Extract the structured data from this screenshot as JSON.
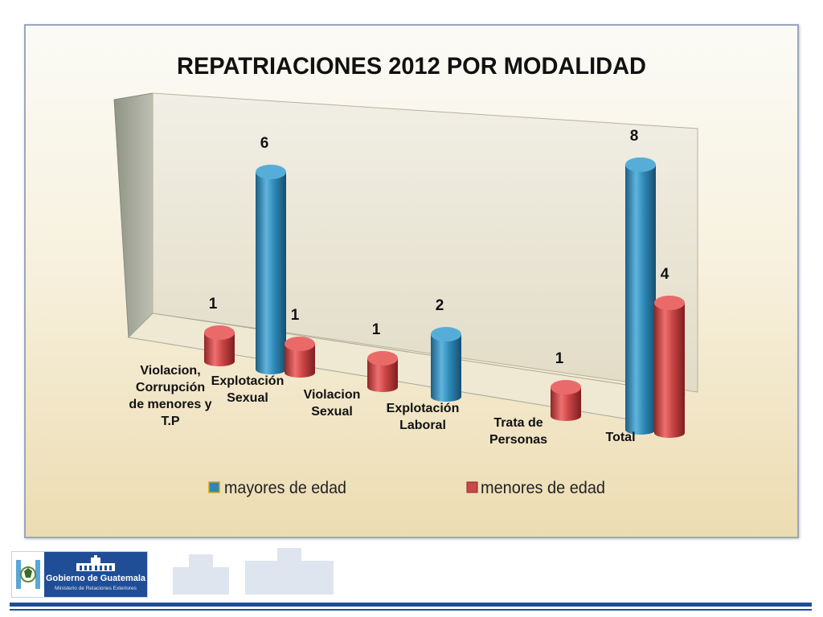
{
  "chart_data": {
    "type": "bar",
    "title": "REPATRIACIONES 2012 POR MODALIDAD",
    "categories": [
      [
        "Violacion,",
        "Corrupción",
        "de menores y",
        "T.P"
      ],
      [
        "Explotación",
        "Sexual"
      ],
      [
        "Violacion",
        "Sexual"
      ],
      [
        "Explotación",
        "Laboral"
      ],
      [
        "Trata de",
        "Personas"
      ],
      [
        "Total"
      ]
    ],
    "series": [
      {
        "name": "mayores de edad",
        "color": "#2e86b4",
        "values": [
          null,
          6,
          null,
          2,
          null,
          8
        ]
      },
      {
        "name": "menores de edad",
        "color": "#c94848",
        "values": [
          1,
          1,
          1,
          null,
          1,
          4
        ]
      }
    ],
    "ylim": [
      0,
      8
    ],
    "chart_style": "3d-cylinder",
    "legend": "bottom",
    "grid": false
  },
  "footer": {
    "logo_text": "Gobierno de Guatemala",
    "logo_subtext": "Ministerio de Relaciones Exteriores",
    "emblem_icon": "guatemala-coat-of-arms-icon",
    "palace_icon": "national-palace-icon"
  }
}
